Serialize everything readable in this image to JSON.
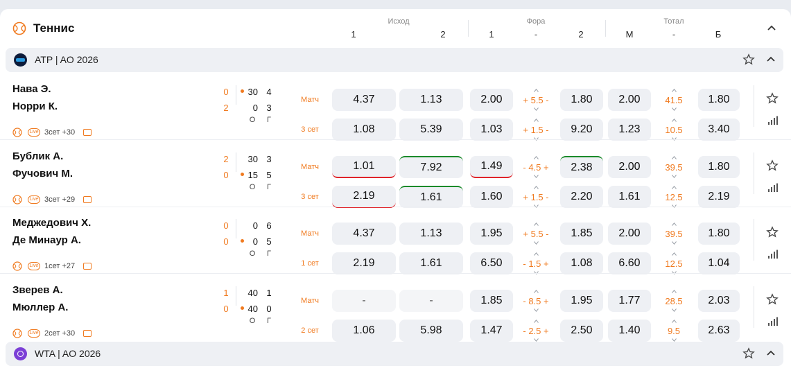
{
  "header": {
    "title": "Теннис",
    "groups": {
      "outcome": {
        "label": "Исход",
        "cols": [
          "1",
          "2"
        ]
      },
      "handicap": {
        "label": "Фора",
        "cols": [
          "1",
          "-",
          "2"
        ]
      },
      "total": {
        "label": "Тотал",
        "cols": [
          "М",
          "-",
          "Б"
        ]
      }
    }
  },
  "leagues": [
    {
      "name": "ATP | AO 2026",
      "logo_color": "#0d1b3a"
    },
    {
      "name": "WTA | AO 2026",
      "logo_color": "#7b3fd6"
    }
  ],
  "matches": [
    {
      "p1": "Нава Э.",
      "p2": "Норри К.",
      "sets1": "0",
      "sets2": "2",
      "pts1": "30",
      "pts2": "0",
      "games1": "4",
      "games2": "3",
      "serve": 1,
      "og": [
        "О",
        "Г"
      ],
      "set_info": "3сет +30",
      "rows": [
        {
          "label": "Матч",
          "o1": "4.37",
          "o2": "1.13",
          "h1": "2.00",
          "hl": "+ 5.5 -",
          "h2": "1.80",
          "tm": "2.00",
          "tl": "41.5",
          "tb": "1.80"
        },
        {
          "label": "3 сет",
          "o1": "1.08",
          "o2": "5.39",
          "h1": "1.03",
          "hl": "+ 1.5 -",
          "h2": "9.20",
          "tm": "1.23",
          "tl": "10.5",
          "tb": "3.40"
        }
      ]
    },
    {
      "p1": "Бублик А.",
      "p2": "Фучович М.",
      "sets1": "2",
      "sets2": "0",
      "pts1": "30",
      "pts2": "15",
      "games1": "3",
      "games2": "5",
      "serve": 2,
      "og": [
        "О",
        "Г"
      ],
      "set_info": "3сет +29",
      "rows": [
        {
          "label": "Матч",
          "o1": "1.01",
          "o2": "7.92",
          "h1": "1.49",
          "hl": "- 4.5 +",
          "h2": "2.38",
          "tm": "2.00",
          "tl": "39.5",
          "tb": "1.80"
        },
        {
          "label": "3 сет",
          "o1": "2.19",
          "o2": "1.61",
          "h1": "1.60",
          "hl": "+ 1.5 -",
          "h2": "2.20",
          "tm": "1.61",
          "tl": "12.5",
          "tb": "2.19"
        }
      ]
    },
    {
      "p1": "Меджедович Х.",
      "p2": "Де Минаур А.",
      "sets1": "0",
      "sets2": "0",
      "pts1": "0",
      "pts2": "0",
      "games1": "6",
      "games2": "5",
      "serve": 2,
      "og": [
        "О",
        "Г"
      ],
      "set_info": "1сет +27",
      "rows": [
        {
          "label": "Матч",
          "o1": "4.37",
          "o2": "1.13",
          "h1": "1.95",
          "hl": "+ 5.5 -",
          "h2": "1.85",
          "tm": "2.00",
          "tl": "39.5",
          "tb": "1.80"
        },
        {
          "label": "1 сет",
          "o1": "2.19",
          "o2": "1.61",
          "h1": "6.50",
          "hl": "- 1.5 +",
          "h2": "1.08",
          "tm": "6.60",
          "tl": "12.5",
          "tb": "1.04"
        }
      ]
    },
    {
      "p1": "Зверев А.",
      "p2": "Мюллер А.",
      "sets1": "1",
      "sets2": "0",
      "pts1": "40",
      "pts2": "40",
      "games1": "1",
      "games2": "0",
      "serve": 2,
      "og": [
        "О",
        "Г"
      ],
      "set_info": "2сет +30",
      "rows": [
        {
          "label": "Матч",
          "o1": "-",
          "o2": "-",
          "h1": "1.85",
          "hl": "- 8.5 +",
          "h2": "1.95",
          "tm": "1.77",
          "tl": "28.5",
          "tb": "2.03"
        },
        {
          "label": "2 сет",
          "o1": "1.06",
          "o2": "5.98",
          "h1": "1.47",
          "hl": "- 2.5 +",
          "h2": "2.50",
          "tm": "1.40",
          "tl": "9.5",
          "tb": "2.63"
        }
      ]
    }
  ],
  "colors": {
    "accent": "#f07a1f",
    "odds_up": "#1a8a2a",
    "odds_down": "#e0242a",
    "cell_bg": "#eef0f4"
  },
  "icons": [
    "tennis-icon",
    "chevron-up-icon",
    "star-icon",
    "stats-icon",
    "live-icon",
    "tv-icon"
  ]
}
